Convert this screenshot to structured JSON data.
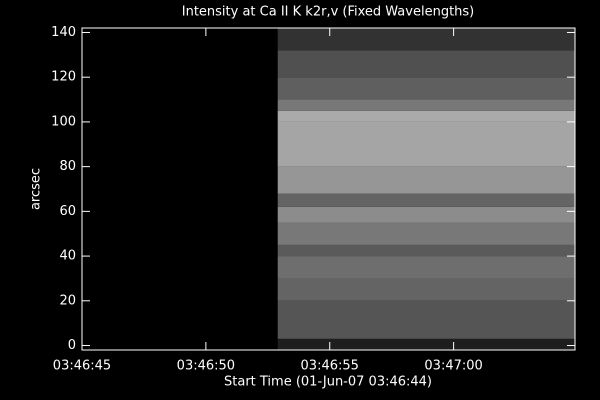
{
  "chart_data": {
    "type": "heatmap",
    "title": "Intensity at Ca II K k2r,v (Fixed Wavelengths)",
    "x_label": "Start Time (01-Jun-07 03:46:44)",
    "y_label": "arcsec",
    "xlim": [
      1,
      20.9
    ],
    "xticks": [
      {
        "value": 1,
        "label": "03:46:45"
      },
      {
        "value": 6,
        "label": "03:46:50"
      },
      {
        "value": 11,
        "label": "03:46:55"
      },
      {
        "value": 16,
        "label": "03:47:00"
      }
    ],
    "ylim": [
      -2,
      142
    ],
    "yticks": [
      0,
      20,
      40,
      60,
      80,
      100,
      120,
      140
    ],
    "image": {
      "x": [
        8.9,
        20.9
      ],
      "y_bins": [
        -2,
        3,
        20,
        30,
        40,
        45,
        55,
        62,
        68,
        80,
        100,
        105,
        110,
        120,
        132,
        142
      ],
      "values": [
        30,
        85,
        100,
        110,
        90,
        120,
        140,
        100,
        150,
        165,
        170,
        120,
        95,
        80,
        50
      ]
    }
  }
}
